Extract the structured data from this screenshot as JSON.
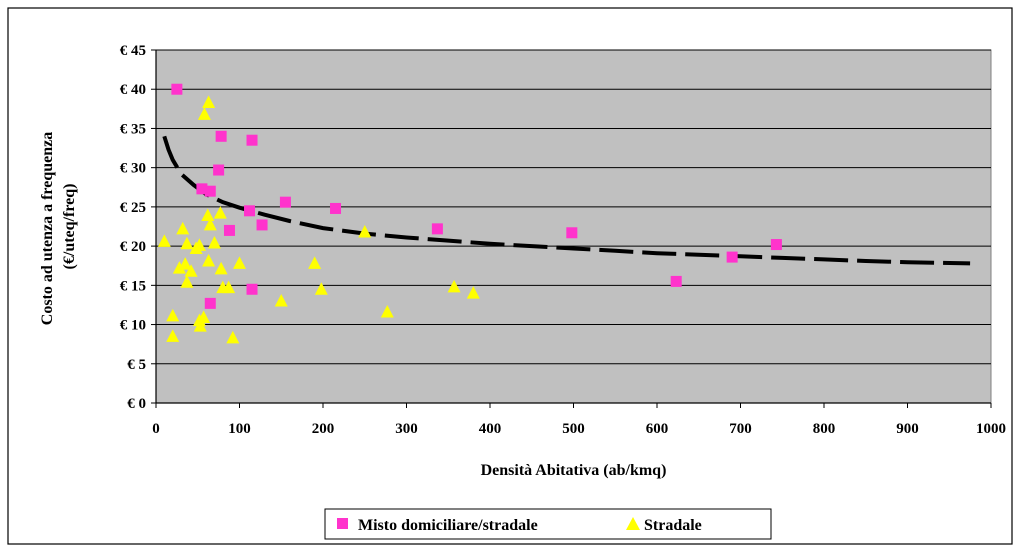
{
  "chart_data": {
    "type": "scatter",
    "xlabel": "Densità Abitativa (ab/kmq)",
    "ylabel_lines": [
      "Costo ad utenza a frequenza",
      "(€/uteq/freq)"
    ],
    "xlim": [
      0,
      1000
    ],
    "ylim": [
      0,
      45
    ],
    "x_ticks": [
      0,
      100,
      200,
      300,
      400,
      500,
      600,
      700,
      800,
      900,
      1000
    ],
    "y_ticks": [
      0,
      5,
      10,
      15,
      20,
      25,
      30,
      35,
      40,
      45
    ],
    "y_tick_labels": [
      "€ 0",
      "€ 5",
      "€ 10",
      "€ 15",
      "€ 20",
      "€ 25",
      "€ 30",
      "€ 35",
      "€ 40",
      "€ 45"
    ],
    "grid": "horizontal",
    "plot_background": "#c0c0c0",
    "legend_position": "bottom",
    "series": [
      {
        "name": "Misto domiciliare/stradale",
        "marker": "square",
        "color": "#ff33cc",
        "points": [
          [
            25,
            40
          ],
          [
            55,
            27.3
          ],
          [
            65,
            27
          ],
          [
            75,
            29.7
          ],
          [
            78,
            34
          ],
          [
            115,
            33.5
          ],
          [
            112,
            24.5
          ],
          [
            88,
            22
          ],
          [
            127,
            22.7
          ],
          [
            155,
            25.6
          ],
          [
            215,
            24.8
          ],
          [
            337,
            22.2
          ],
          [
            498,
            21.7
          ],
          [
            115,
            14.5
          ],
          [
            65,
            12.7
          ],
          [
            623,
            15.5
          ],
          [
            690,
            18.6
          ],
          [
            743,
            20.2
          ]
        ]
      },
      {
        "name": "Stradale",
        "marker": "triangle",
        "color": "#ffff00",
        "points": [
          [
            10,
            20.6
          ],
          [
            20,
            11.1
          ],
          [
            20,
            8.5
          ],
          [
            28,
            17.2
          ],
          [
            32,
            22.2
          ],
          [
            35,
            17.7
          ],
          [
            37,
            15.4
          ],
          [
            37,
            20.3
          ],
          [
            42,
            16.8
          ],
          [
            48,
            19.7
          ],
          [
            52,
            20.1
          ],
          [
            52,
            10.5
          ],
          [
            53,
            9.8
          ],
          [
            57,
            10.9
          ],
          [
            58,
            36.8
          ],
          [
            63,
            38.3
          ],
          [
            62,
            23.9
          ],
          [
            63,
            18.1
          ],
          [
            65,
            22.7
          ],
          [
            70,
            20.4
          ],
          [
            77,
            24.2
          ],
          [
            78,
            17.1
          ],
          [
            80,
            14.7
          ],
          [
            87,
            14.7
          ],
          [
            92,
            8.3
          ],
          [
            100,
            17.8
          ],
          [
            150,
            13
          ],
          [
            190,
            17.8
          ],
          [
            198,
            14.5
          ],
          [
            250,
            21.8
          ],
          [
            277,
            11.6
          ],
          [
            357,
            14.8
          ],
          [
            380,
            14
          ]
        ]
      }
    ],
    "trendline": {
      "style": "dashed",
      "color": "#000000",
      "points": [
        [
          10,
          34
        ],
        [
          15,
          32.3
        ],
        [
          20,
          31
        ],
        [
          30,
          29.2
        ],
        [
          45,
          27.8
        ],
        [
          60,
          26.6
        ],
        [
          80,
          25.6
        ],
        [
          100,
          24.9
        ],
        [
          130,
          24
        ],
        [
          160,
          23.2
        ],
        [
          200,
          22.3
        ],
        [
          250,
          21.6
        ],
        [
          300,
          21.1
        ],
        [
          350,
          20.7
        ],
        [
          400,
          20.3
        ],
        [
          450,
          20
        ],
        [
          500,
          19.7
        ],
        [
          550,
          19.4
        ],
        [
          600,
          19.1
        ],
        [
          650,
          18.9
        ],
        [
          700,
          18.7
        ],
        [
          750,
          18.5
        ],
        [
          800,
          18.3
        ],
        [
          850,
          18.1
        ],
        [
          900,
          17.95
        ],
        [
          975,
          17.8
        ]
      ]
    }
  }
}
